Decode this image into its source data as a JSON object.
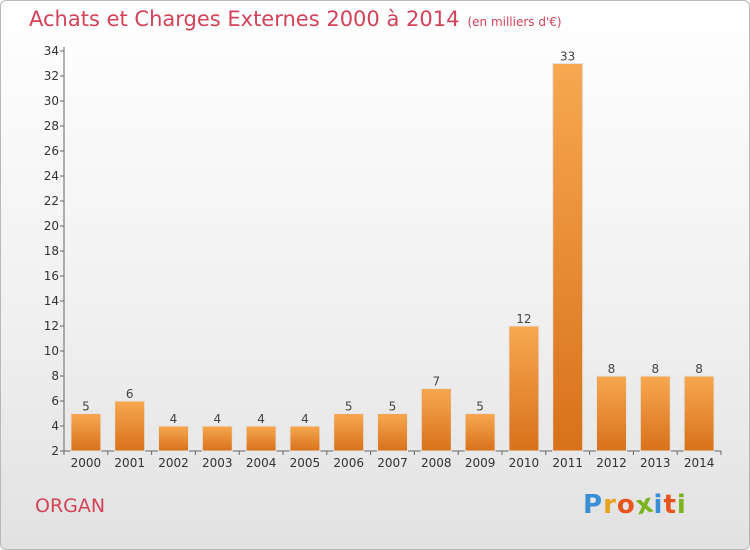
{
  "header": {
    "title": "Achats et Charges Externes 2000 à 2014",
    "unit": "(en milliers d'€)"
  },
  "footer": {
    "commune": "ORGAN",
    "logo_letters": [
      "P",
      "r",
      "o",
      "x",
      "i",
      "t",
      "i"
    ],
    "logo_colors": [
      "#3a8ed6",
      "#e8a21e",
      "#e8541e",
      "#7cb41e",
      "#3a8ed6",
      "#e8541e",
      "#7cb41e"
    ]
  },
  "colors": {
    "bar_light": "#f7a851",
    "bar_dark": "#d8711a",
    "title": "#d2435a"
  },
  "chart_data": {
    "type": "bar",
    "title": "Achats et Charges Externes 2000 à 2014",
    "subtitle": "(en milliers d'€)",
    "xlabel": "",
    "ylabel": "",
    "categories": [
      "2000",
      "2001",
      "2002",
      "2003",
      "2004",
      "2005",
      "2006",
      "2007",
      "2008",
      "2009",
      "2010",
      "2011",
      "2012",
      "2013",
      "2014"
    ],
    "values": [
      5,
      6,
      4,
      4,
      4,
      4,
      5,
      5,
      7,
      5,
      12,
      33,
      8,
      8,
      8
    ],
    "ylim": [
      2,
      34
    ],
    "yticks": [
      2,
      4,
      6,
      8,
      10,
      12,
      14,
      16,
      18,
      20,
      22,
      24,
      26,
      28,
      30,
      32,
      34
    ],
    "grid": false,
    "legend": "none"
  }
}
